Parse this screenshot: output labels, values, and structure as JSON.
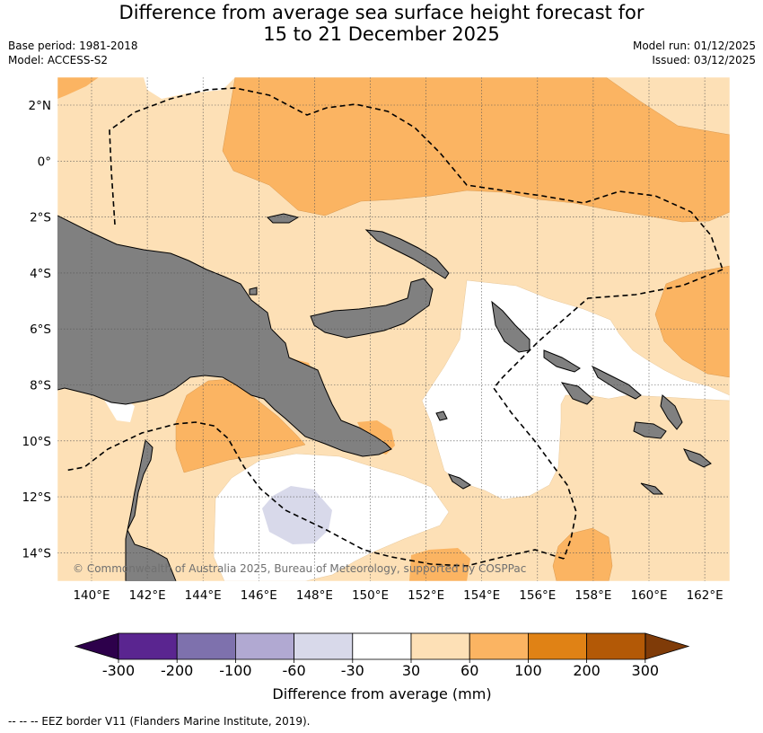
{
  "title": {
    "line1": "Difference from average sea surface height forecast for",
    "line2": "15 to 21 December 2025"
  },
  "meta": {
    "base_period": "Base period: 1981-2018",
    "model": "Model: ACCESS-S2",
    "model_run": "Model run: 01/12/2025",
    "issued": "Issued: 03/12/2025"
  },
  "map": {
    "lon_labels": [
      "140°E",
      "142°E",
      "144°E",
      "146°E",
      "148°E",
      "150°E",
      "152°E",
      "154°E",
      "156°E",
      "158°E",
      "160°E",
      "162°E"
    ],
    "lat_labels": [
      "2°N",
      "0°",
      "2°S",
      "4°S",
      "6°S",
      "8°S",
      "10°S",
      "12°S",
      "14°S"
    ],
    "copyright": "© Commonwealth of Australia 2025, Bureau of Meteorology, supported by COSPPac"
  },
  "colorbar": {
    "ticks": [
      "-300",
      "-200",
      "-100",
      "-60",
      "-30",
      "30",
      "60",
      "100",
      "200",
      "300"
    ],
    "colors": [
      "#5a2590",
      "#7e71ad",
      "#b1a9d2",
      "#d8d9ea",
      "#ffffff",
      "#fde0b6",
      "#fbb462",
      "#e08215",
      "#b35906"
    ],
    "extend_low_color": "#2d004b",
    "extend_high_color": "#7f3b08",
    "label": "Difference from average (mm)"
  },
  "colors": {
    "land": "#808080",
    "band_30_60": "#fde0b6",
    "band_60_100": "#fbb462",
    "band_neg_60_30": "#d8d9ea"
  },
  "footer": {
    "eez_text": "--  --  -- EEZ border V11 (Flanders Marine Institute, 2019)."
  }
}
